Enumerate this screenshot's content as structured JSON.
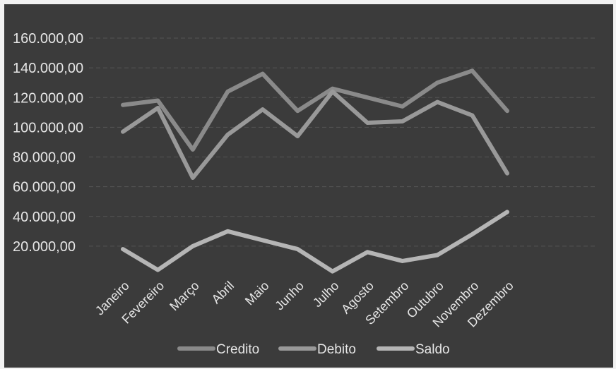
{
  "chart_data": {
    "type": "line",
    "title": "",
    "xlabel": "",
    "ylabel": "",
    "categories": [
      "Janeiro",
      "Fevereiro",
      "Março",
      "Abril",
      "Maio",
      "Junho",
      "Julho",
      "Agosto",
      "Setembro",
      "Outubro",
      "Novembro",
      "Dezembro"
    ],
    "ylim": [
      0,
      160000
    ],
    "yticks": [
      "20.000,00",
      "40.000,00",
      "60.000,00",
      "80.000,00",
      "100.000,00",
      "120.000,00",
      "140.000,00",
      "160.000,00"
    ],
    "ytick_values": [
      20000,
      40000,
      60000,
      80000,
      100000,
      120000,
      140000,
      160000
    ],
    "grid": true,
    "legend_position": "bottom",
    "series": [
      {
        "name": "Credito",
        "color": "#8a8a8a",
        "values": [
          115000,
          118000,
          85000,
          124000,
          136000,
          111000,
          126000,
          120000,
          114000,
          130000,
          138000,
          111000
        ]
      },
      {
        "name": "Debito",
        "color": "#999999",
        "values": [
          97000,
          113000,
          66000,
          95000,
          112000,
          94000,
          124000,
          103000,
          104000,
          117000,
          108000,
          69000
        ]
      },
      {
        "name": "Saldo",
        "color": "#b5b5b5",
        "values": [
          18000,
          4000,
          20000,
          30000,
          24000,
          18000,
          3000,
          16000,
          10000,
          14000,
          28000,
          43000
        ]
      }
    ]
  }
}
